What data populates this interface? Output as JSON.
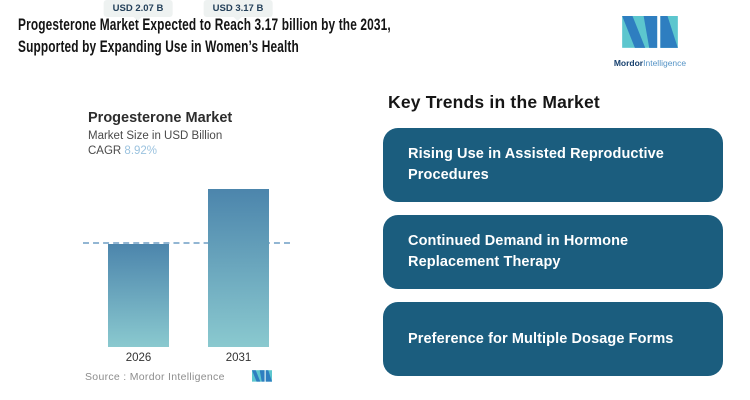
{
  "header": {
    "title_line1": "Progesterone Market Expected to Reach 3.17 billion by the 2031,",
    "title_line2": "Supported by Expanding Use in Women’s Health"
  },
  "brand": {
    "name_bold": "Mordor",
    "name_light": "Intelligence"
  },
  "chart": {
    "title": "Progesterone Market",
    "subtitle": "Market Size in USD Billion",
    "cagr_label": "CAGR ",
    "cagr_value": "8.92%",
    "source_label": "Source :  ",
    "source_value": "Mordor Intelligence"
  },
  "chart_data": {
    "type": "bar",
    "title": "Progesterone Market",
    "ylabel": "Market Size in USD Billion",
    "categories": [
      "2026",
      "2031"
    ],
    "values": [
      2.07,
      3.17
    ],
    "value_labels": [
      "USD 2.07 B",
      "USD 3.17 B"
    ],
    "cagr_pct": 8.92,
    "ylim": [
      0,
      3.5
    ],
    "reference_line": 2.07,
    "grid": false,
    "legend": false,
    "bar_gradient": [
      "#4c85ac",
      "#8ac9cf"
    ]
  },
  "trends": {
    "heading": "Key Trends in the Market",
    "items": [
      {
        "text": "Rising Use in Assisted Reproductive Procedures",
        "lines": [
          "Rising Use in Assisted Reproductive",
          "Procedures"
        ]
      },
      {
        "text": "Continued Demand in Hormone Replacement Therapy",
        "lines": [
          "Continued Demand in Hormone",
          "Replacement Therapy"
        ]
      },
      {
        "text": "Preference for Multiple Dosage Forms",
        "lines": [
          "Preference for Multiple Dosage Forms",
          ""
        ]
      }
    ]
  },
  "colors": {
    "trend_box": "#1b5d7e",
    "bar_top": "#4c85ac",
    "bar_bottom": "#8ac9cf",
    "dash_line": "#92b6d3",
    "value_label_bg": "#eef2f1",
    "value_label_text": "#23405a",
    "cagr_value": "#9cc3df",
    "logo_teal": "#5cc6ce",
    "logo_blue": "#2e7ec0",
    "logo_navy": "#16406e",
    "logo_light": "#5694c6"
  }
}
